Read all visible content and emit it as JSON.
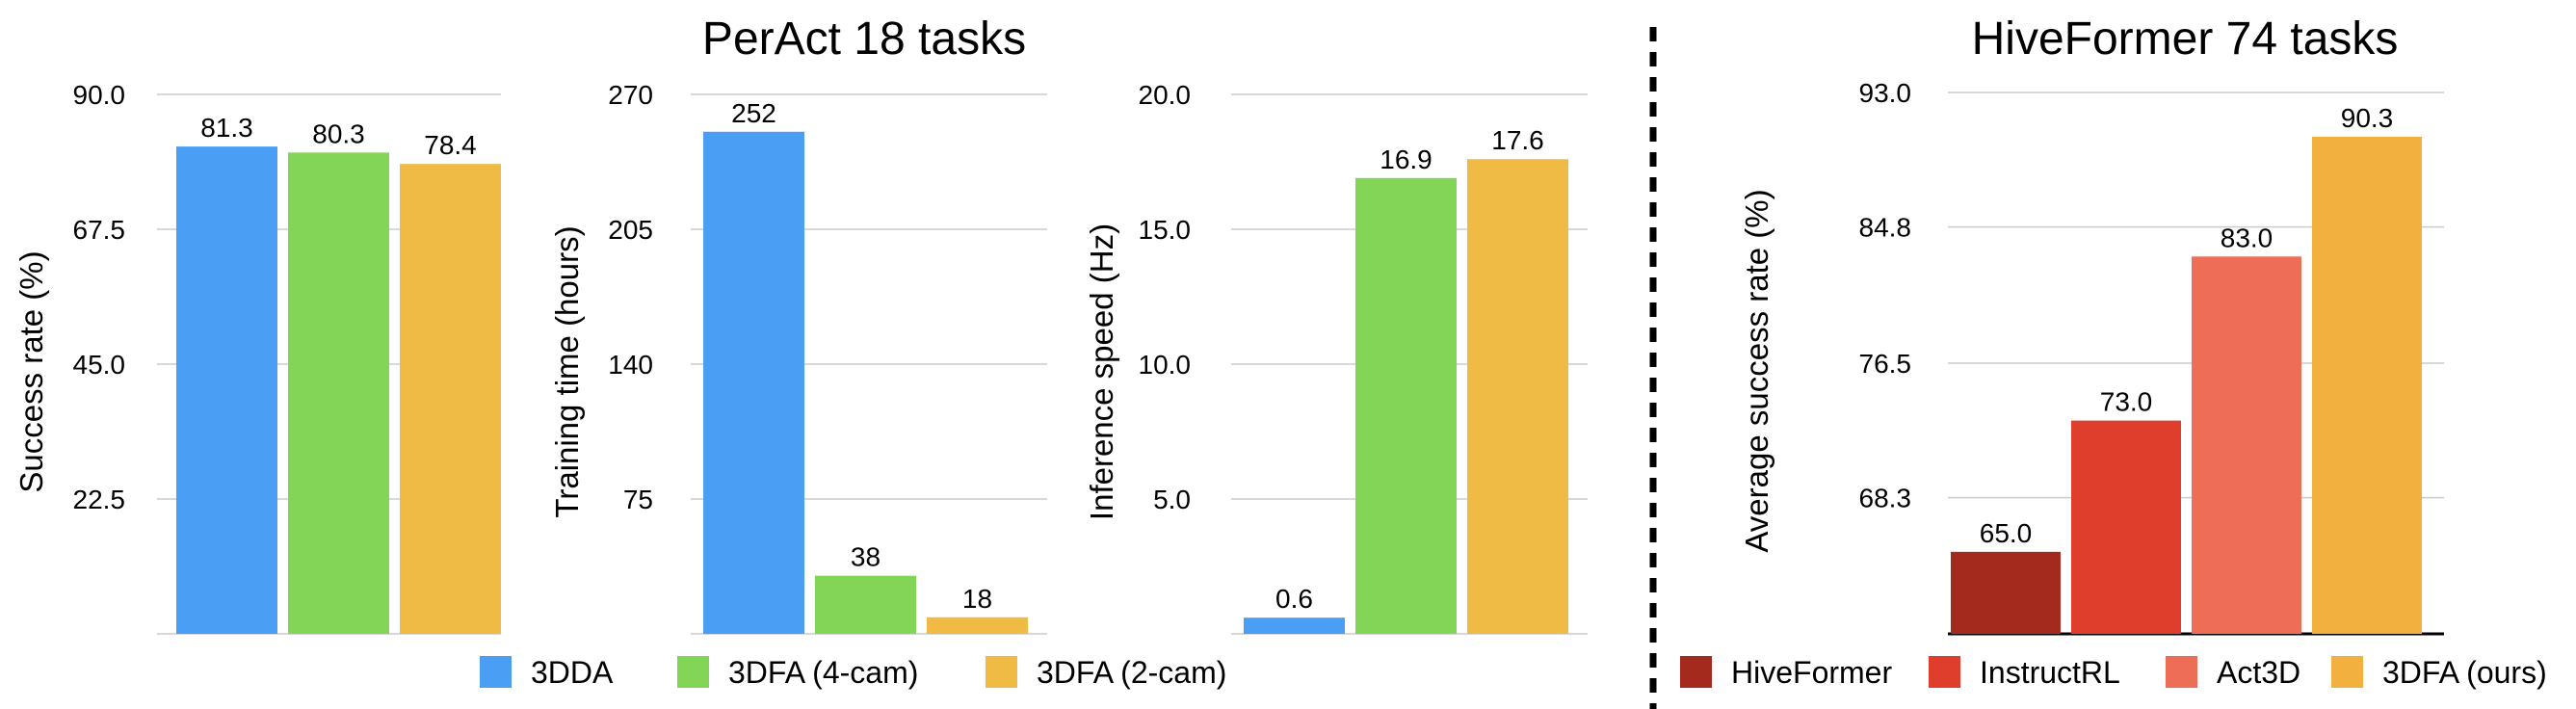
{
  "colors": {
    "3DDA": "#4a9ff5",
    "3DFA (4-cam)": "#82d556",
    "3DFA (2-cam)": "#f0bb44",
    "HiveFormer": "#a52a1e",
    "InstructRL": "#de3e2b",
    "Act3D": "#ee6d57",
    "3DFA (ours)": "#f2b13f",
    "grid": "#cccccc",
    "divider": "#000000"
  },
  "left_group": {
    "title": "PerAct 18 tasks",
    "legend": [
      "3DDA",
      "3DFA (4-cam)",
      "3DFA (2-cam)"
    ]
  },
  "right_group": {
    "title": "HiveFormer 74 tasks",
    "legend": [
      "HiveFormer",
      "InstructRL",
      "Act3D",
      "3DFA (ours)"
    ]
  },
  "chart_data": [
    {
      "type": "bar",
      "ylabel": "Success rate (%)",
      "ylim": [
        0,
        90
      ],
      "yticks": [
        "22.5",
        "45.0",
        "67.5",
        "90.0"
      ],
      "categories": [
        "3DDA",
        "3DFA (4-cam)",
        "3DFA (2-cam)"
      ],
      "values": [
        81.3,
        80.3,
        78.4
      ],
      "value_labels": [
        "81.3",
        "80.3",
        "78.4"
      ]
    },
    {
      "type": "bar",
      "ylabel": "Training time (hours)",
      "ylim": [
        10,
        270
      ],
      "yticks": [
        "75",
        "140",
        "205",
        "270"
      ],
      "categories": [
        "3DDA",
        "3DFA (4-cam)",
        "3DFA (2-cam)"
      ],
      "values": [
        252,
        38,
        18
      ],
      "value_labels": [
        "252",
        "38",
        "18"
      ]
    },
    {
      "type": "bar",
      "ylabel": "Inference speed (Hz)",
      "ylim": [
        0,
        20
      ],
      "yticks": [
        "5.0",
        "10.0",
        "15.0",
        "20.0"
      ],
      "categories": [
        "3DDA",
        "3DFA (4-cam)",
        "3DFA (2-cam)"
      ],
      "values": [
        0.6,
        16.9,
        17.6
      ],
      "value_labels": [
        "0.6",
        "16.9",
        "17.6"
      ]
    },
    {
      "type": "bar",
      "ylabel": "Average success rate (%)",
      "ylim": [
        60,
        93
      ],
      "yticks": [
        "68.3",
        "76.5",
        "84.8",
        "93.0"
      ],
      "categories": [
        "HiveFormer",
        "InstructRL",
        "Act3D",
        "3DFA (ours)"
      ],
      "values": [
        65.0,
        73.0,
        83.0,
        90.3
      ],
      "value_labels": [
        "65.0",
        "73.0",
        "83.0",
        "90.3"
      ]
    }
  ]
}
